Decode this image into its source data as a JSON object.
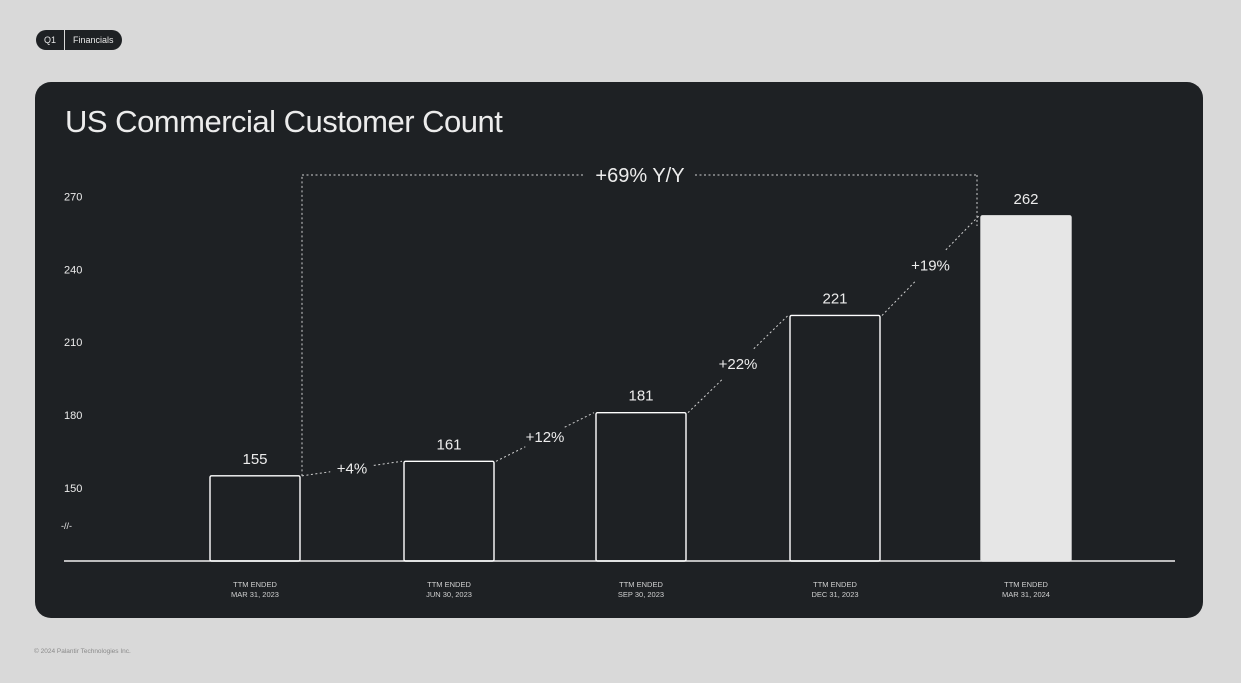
{
  "header": {
    "tag_quarter": "Q1",
    "tag_section": "Financials"
  },
  "footer": {
    "copyright": "© 2024 Palantir Technologies Inc."
  },
  "colors": {
    "page_bg": "#d9d9d9",
    "card_bg": "#1e2124",
    "bar_outline": "#ffffff",
    "bar_highlight": "#e6e6e6",
    "text": "#ececec"
  },
  "chart_data": {
    "type": "bar",
    "title": "US Commercial Customer Count",
    "categories": [
      [
        "TTM ENDED",
        "MAR 31, 2023"
      ],
      [
        "TTM ENDED",
        "JUN 30, 2023"
      ],
      [
        "TTM ENDED",
        "SEP 30, 2023"
      ],
      [
        "TTM ENDED",
        "DEC 31, 2023"
      ],
      [
        "TTM ENDED",
        "MAR 31, 2024"
      ]
    ],
    "values": [
      155,
      161,
      181,
      221,
      262
    ],
    "data_labels": [
      "155",
      "161",
      "181",
      "221",
      "262"
    ],
    "highlight_index": 4,
    "growth_labels": [
      "+4%",
      "+12%",
      "+22%",
      "+19%"
    ],
    "yoy_label": "+69% Y/Y",
    "y_ticks": [
      150,
      180,
      210,
      240,
      270
    ],
    "y_tick_labels": [
      "150",
      "180",
      "210",
      "240",
      "270"
    ],
    "axis_break_label": "-//-",
    "ylim": [
      150,
      270
    ],
    "grid": false,
    "legend": "none"
  }
}
